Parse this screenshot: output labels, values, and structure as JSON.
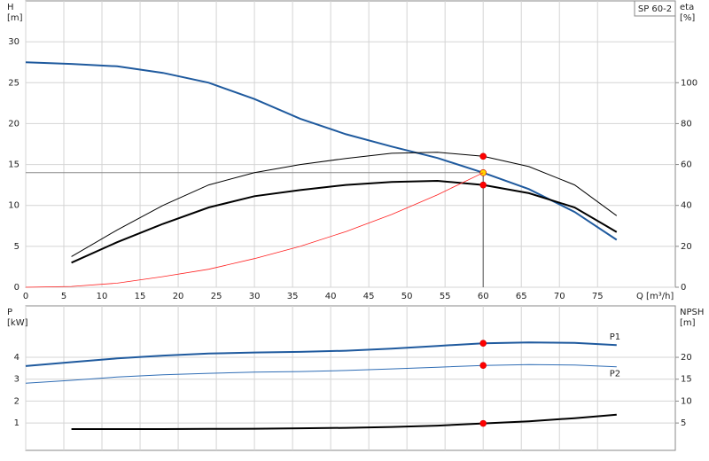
{
  "chart_data": [
    {
      "type": "line",
      "y_label": "H",
      "y_unit": "[m]",
      "y2_label": "eta",
      "y2_unit": "[%]",
      "x_label": "Q [m³/h]",
      "annotation": "SP 60-2",
      "xlim": [
        0,
        85.2
      ],
      "xticks": [
        0,
        5,
        10,
        15,
        20,
        25,
        30,
        35,
        40,
        45,
        50,
        55,
        60,
        65,
        70,
        75
      ],
      "show_xtick_labels": true,
      "ylim": [
        0,
        35
      ],
      "yticks": [
        0,
        5,
        10,
        15,
        20,
        25,
        30
      ],
      "y2lim": [
        0,
        140
      ],
      "y2ticks": [
        0,
        20,
        40,
        60,
        80,
        100
      ],
      "grid": true,
      "operating_point": {
        "x": 60,
        "y": 14
      },
      "series": [
        {
          "color": "#1f5a9e",
          "width": 2,
          "axis": "y",
          "point_color": "#ffd700",
          "x": [
            0,
            6,
            12,
            18,
            24,
            30,
            36,
            42,
            48,
            54,
            60,
            66,
            72,
            77.5
          ],
          "values": [
            27.5,
            27.3,
            27,
            26.2,
            25,
            23,
            20.6,
            18.7,
            17.2,
            15.8,
            14,
            12,
            9.2,
            5.8
          ]
        },
        {
          "color": "#000000",
          "width": 1,
          "axis": "y2",
          "point_color": "#ff0000",
          "x": [
            6,
            12,
            18,
            24,
            30,
            36,
            42,
            48,
            54,
            60,
            66,
            72,
            77.5
          ],
          "values": [
            15,
            28,
            40,
            50,
            56,
            60,
            63,
            65.5,
            66,
            64,
            59,
            50,
            35
          ]
        },
        {
          "color": "#000000",
          "width": 2,
          "axis": "y2",
          "point_color": "#ff0000",
          "x": [
            6,
            12,
            18,
            24,
            30,
            36,
            42,
            48,
            54,
            60,
            66,
            72,
            77.5
          ],
          "values": [
            12,
            22,
            31,
            39,
            44.5,
            47.5,
            50,
            51.5,
            52,
            50,
            46,
            39,
            27
          ]
        },
        {
          "color": "#ff2020",
          "width": 0.8,
          "axis": "y",
          "x": [
            0,
            6,
            12,
            18,
            24,
            30,
            36,
            42,
            48,
            54,
            60
          ],
          "values": [
            0,
            0.1,
            0.5,
            1.3,
            2.2,
            3.5,
            5,
            6.8,
            8.9,
            11.3,
            14
          ]
        }
      ]
    },
    {
      "type": "line",
      "y_label": "P",
      "y_unit": "[kW]",
      "y2_label": "NPSH",
      "y2_unit": "[m]",
      "xlim": [
        0,
        85.2
      ],
      "xticks": [
        0,
        5,
        10,
        15,
        20,
        25,
        30,
        35,
        40,
        45,
        50,
        55,
        60,
        65,
        70,
        75
      ],
      "show_xtick_labels": false,
      "ylim": [
        -0.25,
        6.35
      ],
      "yticks": [
        1,
        2,
        3,
        4
      ],
      "y2lim": [
        -1.25,
        31.75
      ],
      "y2ticks": [
        5,
        10,
        15,
        20
      ],
      "grid": true,
      "operating_point": {
        "x": 60
      },
      "series": [
        {
          "name": "P1",
          "color": "#1f5a9e",
          "width": 2,
          "axis": "y",
          "point_color": "#ff0000",
          "x": [
            0,
            6,
            12,
            18,
            24,
            30,
            36,
            42,
            48,
            54,
            60,
            66,
            72,
            77.5
          ],
          "values": [
            3.6,
            3.78,
            3.95,
            4.08,
            4.17,
            4.22,
            4.25,
            4.3,
            4.4,
            4.52,
            4.64,
            4.68,
            4.66,
            4.56
          ]
        },
        {
          "name": "P2",
          "color": "#2f6db5",
          "width": 1,
          "axis": "y",
          "point_color": "#ff0000",
          "x": [
            0,
            6,
            12,
            18,
            24,
            30,
            36,
            42,
            48,
            54,
            60,
            66,
            72,
            77.5
          ],
          "values": [
            2.82,
            2.95,
            3.1,
            3.2,
            3.27,
            3.32,
            3.35,
            3.4,
            3.47,
            3.55,
            3.63,
            3.67,
            3.65,
            3.57
          ]
        },
        {
          "color": "#000000",
          "width": 2,
          "axis": "y2",
          "point_color": "#ff0000",
          "x": [
            6,
            12,
            18,
            24,
            30,
            36,
            42,
            48,
            54,
            60,
            66,
            72,
            77.5
          ],
          "values": [
            3.6,
            3.6,
            3.6,
            3.65,
            3.7,
            3.8,
            3.9,
            4.1,
            4.4,
            4.9,
            5.4,
            6.1,
            6.9
          ]
        }
      ]
    }
  ]
}
